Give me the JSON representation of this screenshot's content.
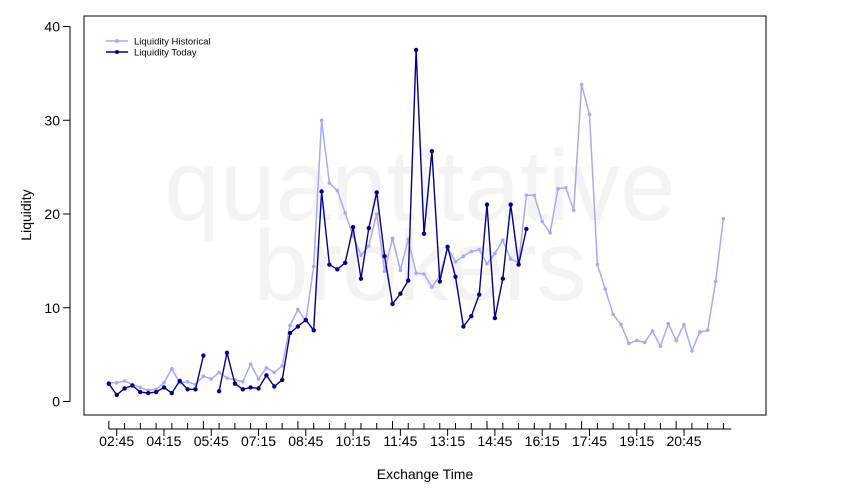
{
  "watermark": [
    "quantitative",
    "brokers"
  ],
  "chart_data": {
    "type": "line",
    "xlabel": "Exchange Time",
    "ylabel": "Liquidity",
    "ylim": [
      0,
      40
    ],
    "yticks": [
      0,
      10,
      20,
      30,
      40
    ],
    "xtick_labels": [
      "02:45",
      "04:15",
      "05:45",
      "07:15",
      "08:45",
      "10:15",
      "11:45",
      "13:15",
      "14:45",
      "16:15",
      "17:45",
      "19:15",
      "20:45"
    ],
    "legend": {
      "position": "top-left"
    },
    "series": [
      {
        "name": "Liquidity Historical",
        "color": "#a9a9f5",
        "values": [
          2.0,
          2.0,
          2.2,
          1.8,
          1.5,
          1.2,
          1.3,
          2.0,
          3.5,
          2.0,
          2.1,
          1.8,
          2.7,
          2.4,
          3.1,
          2.5,
          2.3,
          2.1,
          4.0,
          2.4,
          3.6,
          3.1,
          3.8,
          8.1,
          9.8,
          8.6,
          14.4,
          30.0,
          23.3,
          22.5,
          20.1,
          17.7,
          15.6,
          16.6,
          20.0,
          13.9,
          17.4,
          14.0,
          17.3,
          13.7,
          13.6,
          12.2,
          13.4,
          16.4,
          14.9,
          15.5,
          16.0,
          16.2,
          14.7,
          15.8,
          17.2,
          15.2,
          14.8,
          22.0,
          22.0,
          19.2,
          18.0,
          22.7,
          22.8,
          20.4,
          33.8,
          30.6,
          14.6,
          12.0,
          9.3,
          8.2,
          6.2,
          6.5,
          6.3,
          7.5,
          5.9,
          8.3,
          6.5,
          8.2,
          5.4,
          7.4,
          7.6,
          12.8,
          19.5
        ]
      },
      {
        "name": "Liquidity Today",
        "color": "#00008b",
        "values": [
          1.9,
          0.7,
          1.4,
          1.7,
          1.0,
          0.9,
          1.0,
          1.5,
          0.9,
          2.2,
          1.3,
          1.3,
          4.9,
          null,
          1.1,
          5.2,
          1.9,
          1.3,
          1.5,
          1.4,
          2.8,
          1.6,
          2.3,
          7.3,
          8.0,
          8.7,
          7.6,
          22.4,
          14.6,
          14.1,
          14.8,
          18.6,
          13.1,
          18.5,
          22.3,
          15.5,
          10.4,
          11.5,
          12.9,
          37.5,
          17.9,
          26.7,
          12.8,
          16.5,
          13.3,
          8.0,
          9.1,
          11.4,
          21.0,
          8.9,
          13.1,
          21.0,
          14.6,
          18.4
        ]
      }
    ]
  }
}
